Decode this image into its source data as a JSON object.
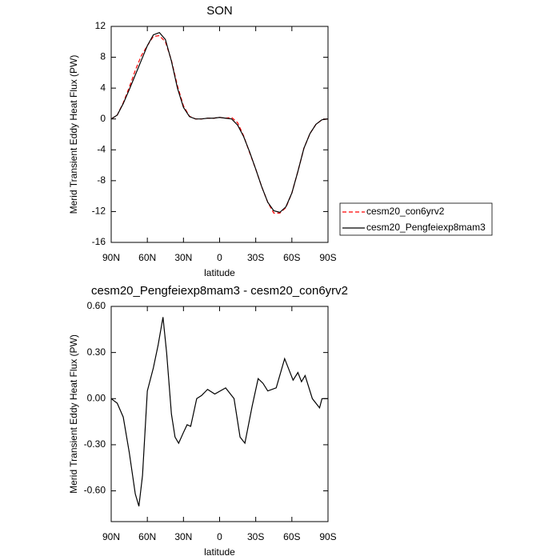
{
  "chart_data": [
    {
      "type": "line",
      "title": "SON",
      "xlabel": "latitude",
      "ylabel": "Merid Transient Eddy Heat Flux (PW)",
      "x": [
        90,
        85,
        80,
        75,
        70,
        65,
        60,
        55,
        50,
        45,
        40,
        35,
        30,
        25,
        20,
        15,
        10,
        5,
        0,
        -5,
        -10,
        -15,
        -20,
        -25,
        -30,
        -35,
        -40,
        -45,
        -50,
        -55,
        -60,
        -65,
        -70,
        -75,
        -80,
        -85,
        -90
      ],
      "series": [
        {
          "name": "cesm20_con6yrv2",
          "color": "#ff0000",
          "dashed": true,
          "values": [
            0,
            0.5,
            2.1,
            4.1,
            6.3,
            8.2,
            9.5,
            10.7,
            10.8,
            10.0,
            7.6,
            4.3,
            1.7,
            0.35,
            0,
            0,
            0.1,
            0.1,
            0.2,
            0.1,
            0.2,
            -0.5,
            -2.2,
            -4.4,
            -6.5,
            -8.8,
            -10.8,
            -12.2,
            -12.2,
            -11.5,
            -9.6,
            -6.8,
            -3.8,
            -1.9,
            -0.7,
            -0.1,
            0
          ]
        },
        {
          "name": "cesm20_Pengfeiexp8mam3",
          "color": "#000000",
          "dashed": false,
          "values": [
            0,
            0.5,
            2.0,
            3.8,
            5.7,
            7.6,
            9.5,
            10.9,
            11.2,
            10.3,
            7.5,
            4.0,
            1.5,
            0.3,
            0,
            0,
            0.1,
            0.1,
            0.2,
            0.1,
            0,
            -0.8,
            -2.3,
            -4.3,
            -6.5,
            -8.8,
            -10.8,
            -11.9,
            -12.1,
            -11.4,
            -9.6,
            -6.8,
            -3.8,
            -1.9,
            -0.7,
            -0.1,
            0
          ]
        }
      ],
      "xlim": [
        90,
        -90
      ],
      "xticks": [
        {
          "value": 90,
          "label": "90N"
        },
        {
          "value": 60,
          "label": "60N"
        },
        {
          "value": 30,
          "label": "30N"
        },
        0,
        {
          "value": -30,
          "label": "30S"
        },
        {
          "value": -60,
          "label": "60S"
        },
        {
          "value": -90,
          "label": "90S"
        }
      ],
      "ylim": [
        -16,
        12
      ],
      "yticks": [
        12,
        8,
        4,
        0,
        -4,
        -8,
        -12,
        -16
      ],
      "legend": "right"
    },
    {
      "type": "line",
      "title": "cesm20_Pengfeiexp8mam3 - cesm20_con6yrv2",
      "xlabel": "latitude",
      "ylabel": "Merid Transient Eddy Heat Flux (PW)",
      "x": [
        90,
        85,
        80,
        75,
        70,
        67,
        64,
        60,
        55,
        51,
        47,
        44,
        40,
        37,
        34,
        30,
        27,
        24,
        19,
        15,
        10,
        4,
        -5,
        -12,
        -17,
        -21,
        -27,
        -32,
        -36,
        -40,
        -47,
        -54,
        -61,
        -65,
        -68,
        -71,
        -77,
        -83,
        -85,
        -90
      ],
      "series": [
        {
          "color": "#000000",
          "dashed": false,
          "values": [
            0,
            -0.03,
            -0.12,
            -0.35,
            -0.62,
            -0.7,
            -0.5,
            0.05,
            0.2,
            0.35,
            0.53,
            0.3,
            -0.1,
            -0.25,
            -0.29,
            -0.22,
            -0.17,
            -0.18,
            0,
            0.02,
            0.06,
            0.03,
            0.07,
            0,
            -0.25,
            -0.29,
            -0.05,
            0.13,
            0.1,
            0.05,
            0.07,
            0.26,
            0.12,
            0.17,
            0.11,
            0.15,
            0,
            -0.06,
            0,
            0
          ]
        }
      ],
      "xlim": [
        90,
        -90
      ],
      "xticks": [
        {
          "value": 90,
          "label": "90N"
        },
        {
          "value": 60,
          "label": "60N"
        },
        {
          "value": 30,
          "label": "30N"
        },
        0,
        {
          "value": -30,
          "label": "30S"
        },
        {
          "value": -60,
          "label": "60S"
        },
        {
          "value": -90,
          "label": "90S"
        }
      ],
      "ylim": [
        -0.8,
        0.6
      ],
      "yticks": [
        {
          "value": 0.6,
          "label": "0.60"
        },
        {
          "value": 0.3,
          "label": "0.30"
        },
        {
          "value": 0,
          "label": "0.00"
        },
        {
          "value": -0.3,
          "label": "-0.30"
        },
        {
          "value": -0.6,
          "label": "-0.60"
        }
      ]
    }
  ]
}
